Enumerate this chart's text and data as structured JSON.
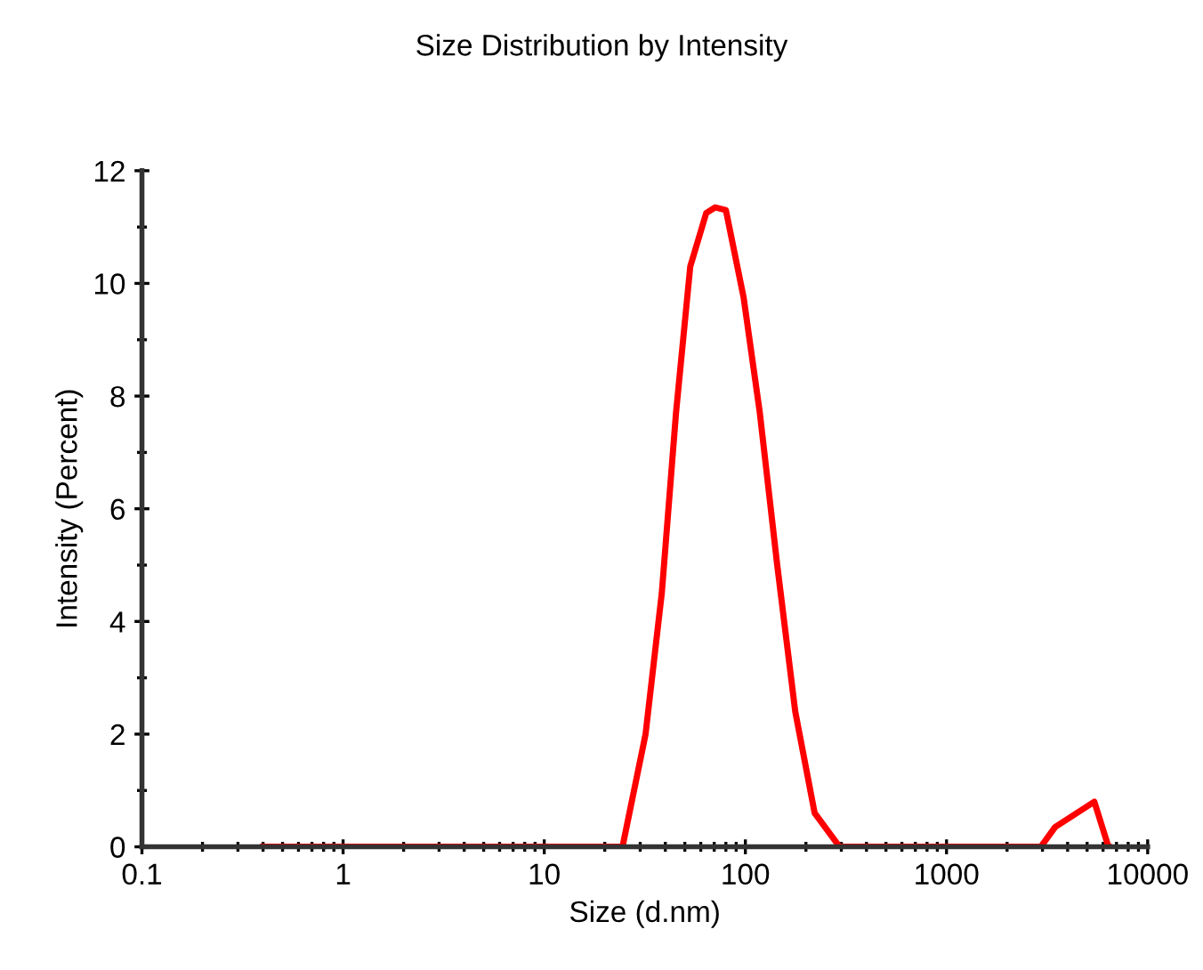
{
  "chart_data": {
    "type": "line",
    "title": "Size Distribution by Intensity",
    "xlabel": "Size (d.nm)",
    "ylabel": "Intensity (Percent)",
    "log": "x",
    "xlim": [
      0.1,
      10000
    ],
    "xticks": [
      0.1,
      1,
      10,
      100,
      1000,
      10000
    ],
    "ylim": [
      0,
      12
    ],
    "yticks": [
      0,
      2,
      4,
      6,
      8,
      10,
      12
    ],
    "grid": false,
    "marker": "none",
    "line_style": "solid",
    "series": [
      {
        "color": "#ff0000",
        "x": [
          0.4,
          24.5,
          31.9,
          38.4,
          45.2,
          53.2,
          63.9,
          70.8,
          80,
          98,
          118,
          144,
          177,
          221,
          294,
          2944,
          3467,
          5433,
          6383,
          6400
        ],
        "values": [
          0,
          0,
          2.0,
          4.5,
          7.7,
          10.3,
          11.25,
          11.35,
          11.3,
          9.75,
          7.7,
          5.0,
          2.4,
          0.6,
          0,
          0,
          0.35,
          0.8,
          0,
          0
        ]
      }
    ]
  }
}
